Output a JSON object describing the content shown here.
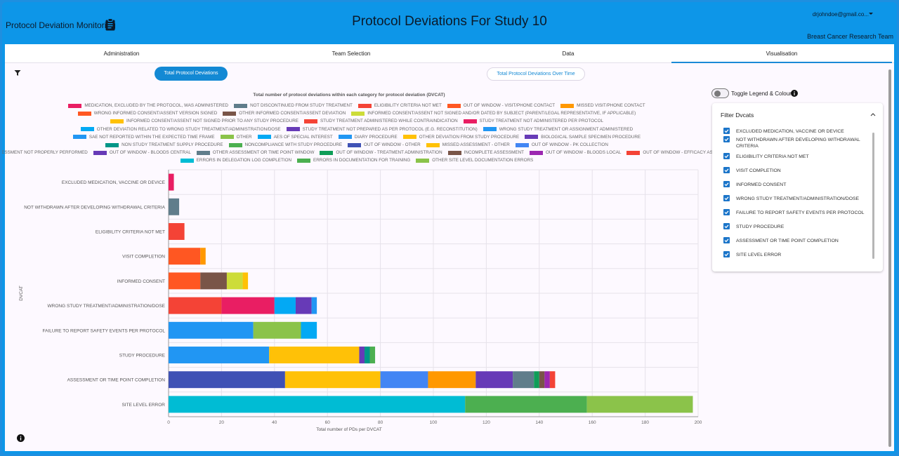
{
  "header": {
    "app_name": "Protocol Deviation Monitoring",
    "title": "Protocol Deviations For Study 10",
    "user": "drjohndoe@gmail.co...",
    "team": "Breast Cancer Research Team"
  },
  "tabs": [
    {
      "label": "Administration"
    },
    {
      "label": "Team Selection"
    },
    {
      "label": "Data"
    },
    {
      "label": "Visualisation"
    }
  ],
  "buttons": {
    "total": "Total Protocol Deviations",
    "over_time": "Total Protocol Deviations Over Time"
  },
  "toggle": {
    "label": "Toggle Legend & Colours"
  },
  "filter": {
    "title": "Filter Dvcats",
    "items": [
      "EXCLUDED MEDICATION, VACCINE OR DEVICE",
      "NOT WITHDRAWN AFTER DEVELOPING WITHDRAWAL CRITERIA",
      "ELIGIBILITY CRITERIA NOT MET",
      "VISIT COMPLETION",
      "INFORMED CONSENT",
      "WRONG STUDY TREATMENT/ADMINISTRATION/DOSE",
      "FAILURE TO REPORT SAFETY EVENTS PER PROTOCOL",
      "STUDY PROCEDURE",
      "ASSESSMENT OR TIME POINT COMPLETION",
      "SITE LEVEL ERROR"
    ]
  },
  "icons": {
    "app": "clipboard-icon",
    "filter": "funnel-icon",
    "info": "info-icon",
    "user_caret": "caret-down-icon",
    "collapse": "chevron-up-icon"
  },
  "colors": {
    "accent": "#1389d4",
    "header": "#0d96e8"
  },
  "chart_data": {
    "type": "bar",
    "orientation": "horizontal",
    "stacked": true,
    "title": "Total number of protocol deviations within each category for protocol deviation (DVCAT)",
    "xlabel": "Total number of PDs per DVCAT",
    "ylabel": "DVCAT",
    "xlim": [
      0,
      200
    ],
    "xticks": [
      0,
      20,
      40,
      60,
      80,
      100,
      120,
      140,
      160,
      180,
      200
    ],
    "grid": true,
    "legend_placement": "top",
    "categories": [
      "EXCLUDED MEDICATION, VACCINE OR DEVICE",
      "NOT WITHDRAWN AFTER DEVELOPING WITHDRAWAL CRITERIA",
      "ELIGIBILITY CRITERIA NOT MET",
      "VISIT COMPLETION",
      "INFORMED CONSENT",
      "WRONG STUDY TREATMENT/ADMINISTRATION/DOSE",
      "FAILURE TO REPORT SAFETY EVENTS PER PROTOCOL",
      "STUDY PROCEDURE",
      "ASSESSMENT OR TIME POINT COMPLETION",
      "SITE LEVEL ERROR"
    ],
    "legend_rows": [
      [
        0,
        1,
        2,
        3,
        4
      ],
      [
        5,
        6,
        7
      ],
      [
        8,
        9,
        10
      ],
      [
        11,
        12,
        13
      ],
      [
        14,
        15,
        16,
        17,
        18,
        19
      ],
      [
        20,
        21,
        22,
        23,
        24
      ],
      [
        25,
        26,
        27,
        28,
        29,
        30,
        31
      ],
      [
        32,
        33,
        34
      ]
    ],
    "series": [
      {
        "name": "MEDICATION, EXCLUDED BY THE PROTOCOL, WAS ADMINISTERED",
        "color": "#e91e63"
      },
      {
        "name": "NOT DISCONTINUED FROM STUDY TREATMENT",
        "color": "#607d8b"
      },
      {
        "name": "ELIGIBILITY CRITERIA NOT MET",
        "color": "#f44336"
      },
      {
        "name": "OUT OF WINDOW - VISIT/PHONE CONTACT",
        "color": "#ff5722"
      },
      {
        "name": "MISSED VISIT/PHONE CONTACT",
        "color": "#ff9800"
      },
      {
        "name": "WRONG INFORMED CONSENT/ASSENT VERSION SIGNED",
        "color": "#ff5722"
      },
      {
        "name": "OTHER INFORMED CONSENT/ASSENT DEVIATION",
        "color": "#795548"
      },
      {
        "name": "INFORMED CONSENT/ASSENT NOT SIGNED AND/OR DATED BY SUBJECT (PARENT/LEGAL REPRESENTATIVE, IF APPLICABLE)",
        "color": "#cddc39"
      },
      {
        "name": "INFORMED CONSENT/ASSENT NOT SIGNED PRIOR TO ANY STUDY PROCEDURE",
        "color": "#ffc107"
      },
      {
        "name": "STUDY TREATMENT ADMINISTERED WHILE CONTRAINDICATION",
        "color": "#f44336"
      },
      {
        "name": "STUDY TREATMENT NOT ADMINISTERED PER PROTOCOL",
        "color": "#e91e63"
      },
      {
        "name": "OTHER DEVIATION RELATED TO WRONG STUDY TREATMENT/ADMINISTRATION/DOSE",
        "color": "#03a9f4"
      },
      {
        "name": "STUDY TREATMENT NOT PREPARED AS PER PROTOCOL (E.G. RECONSTITUTION)",
        "color": "#673ab7"
      },
      {
        "name": "WRONG STUDY TREATMENT OR ASSIGNMENT ADMINISTERED",
        "color": "#2196f3"
      },
      {
        "name": "SAE NOT REPORTED WITHIN THE EXPECTED TIME FRAME",
        "color": "#2196f3"
      },
      {
        "name": "OTHER",
        "color": "#8bc34a"
      },
      {
        "name": "AES OF SPECIAL INTEREST",
        "color": "#03a9f4"
      },
      {
        "name": "DIARY PROCEDURE",
        "color": "#2196f3"
      },
      {
        "name": "OTHER DEVIATION FROM STUDY PROCEDURE",
        "color": "#ffc107"
      },
      {
        "name": "BIOLOGICAL SAMPLE SPECIMEN PROCEDURE",
        "color": "#673ab7"
      },
      {
        "name": "NON STUDY TREATMENT SUPPLY PROCEDURE",
        "color": "#009688"
      },
      {
        "name": "NONCOMPLIANCE WITH STUDY PROCEDURE",
        "color": "#4caf50"
      },
      {
        "name": "OUT OF WINDOW - OTHER",
        "color": "#3f51b5"
      },
      {
        "name": "MISSED ASSESSMENT - OTHER",
        "color": "#ffc107"
      },
      {
        "name": "OUT OF WINDOW - PK COLLECTION",
        "color": "#4285f4"
      },
      {
        "name": "ASSESSMENT NOT PROPERLY PERFORMED",
        "color": "#ff9800"
      },
      {
        "name": "OUT OF WINDOW - BLOODS CENTRAL",
        "color": "#673ab7"
      },
      {
        "name": "OTHER ASSESSMENT OR TIME POINT WINDOW",
        "color": "#607d8b"
      },
      {
        "name": "OUT OF WINDOW - TREATMENT ADMINISTRATION",
        "color": "#0f9d58"
      },
      {
        "name": "INCOMPLETE ASSESSMENT",
        "color": "#795548"
      },
      {
        "name": "OUT OF WINDOW - BLOODS LOCAL",
        "color": "#9c27b0"
      },
      {
        "name": "OUT OF WINDOW - EFFICACY ASSESSMENT",
        "color": "#f44336"
      },
      {
        "name": "ERRORS IN DELEGATION LOG COMPLETION",
        "color": "#00bcd4"
      },
      {
        "name": "ERRORS IN DOCUMENTATION FOR TRAINING",
        "color": "#4caf50"
      },
      {
        "name": "OTHER SITE LEVEL DOCUMENTATION ERRORS",
        "color": "#8bc34a"
      }
    ],
    "bars": [
      {
        "category": "EXCLUDED MEDICATION, VACCINE OR DEVICE",
        "segments": [
          {
            "series": 0,
            "value": 2
          }
        ]
      },
      {
        "category": "NOT WITHDRAWN AFTER DEVELOPING WITHDRAWAL CRITERIA",
        "segments": [
          {
            "series": 1,
            "value": 4
          }
        ]
      },
      {
        "category": "ELIGIBILITY CRITERIA NOT MET",
        "segments": [
          {
            "series": 2,
            "value": 6
          }
        ]
      },
      {
        "category": "VISIT COMPLETION",
        "segments": [
          {
            "series": 3,
            "value": 12
          },
          {
            "series": 4,
            "value": 2
          }
        ]
      },
      {
        "category": "INFORMED CONSENT",
        "segments": [
          {
            "series": 5,
            "value": 12
          },
          {
            "series": 6,
            "value": 10
          },
          {
            "series": 7,
            "value": 6
          },
          {
            "series": 8,
            "value": 2
          }
        ]
      },
      {
        "category": "WRONG STUDY TREATMENT/ADMINISTRATION/DOSE",
        "segments": [
          {
            "series": 9,
            "value": 20
          },
          {
            "series": 10,
            "value": 20
          },
          {
            "series": 11,
            "value": 8
          },
          {
            "series": 12,
            "value": 6
          },
          {
            "series": 13,
            "value": 2
          }
        ]
      },
      {
        "category": "FAILURE TO REPORT SAFETY EVENTS PER PROTOCOL",
        "segments": [
          {
            "series": 14,
            "value": 32
          },
          {
            "series": 15,
            "value": 18
          },
          {
            "series": 16,
            "value": 6
          }
        ]
      },
      {
        "category": "STUDY PROCEDURE",
        "segments": [
          {
            "series": 17,
            "value": 38
          },
          {
            "series": 18,
            "value": 34
          },
          {
            "series": 19,
            "value": 2
          },
          {
            "series": 20,
            "value": 2
          },
          {
            "series": 21,
            "value": 2
          }
        ]
      },
      {
        "category": "ASSESSMENT OR TIME POINT COMPLETION",
        "segments": [
          {
            "series": 22,
            "value": 44
          },
          {
            "series": 23,
            "value": 36
          },
          {
            "series": 24,
            "value": 18
          },
          {
            "series": 25,
            "value": 18
          },
          {
            "series": 26,
            "value": 14
          },
          {
            "series": 27,
            "value": 8
          },
          {
            "series": 28,
            "value": 2
          },
          {
            "series": 29,
            "value": 2
          },
          {
            "series": 30,
            "value": 2
          },
          {
            "series": 31,
            "value": 2
          }
        ]
      },
      {
        "category": "SITE LEVEL ERROR",
        "segments": [
          {
            "series": 32,
            "value": 112
          },
          {
            "series": 33,
            "value": 46
          },
          {
            "series": 34,
            "value": 40
          }
        ]
      }
    ]
  }
}
